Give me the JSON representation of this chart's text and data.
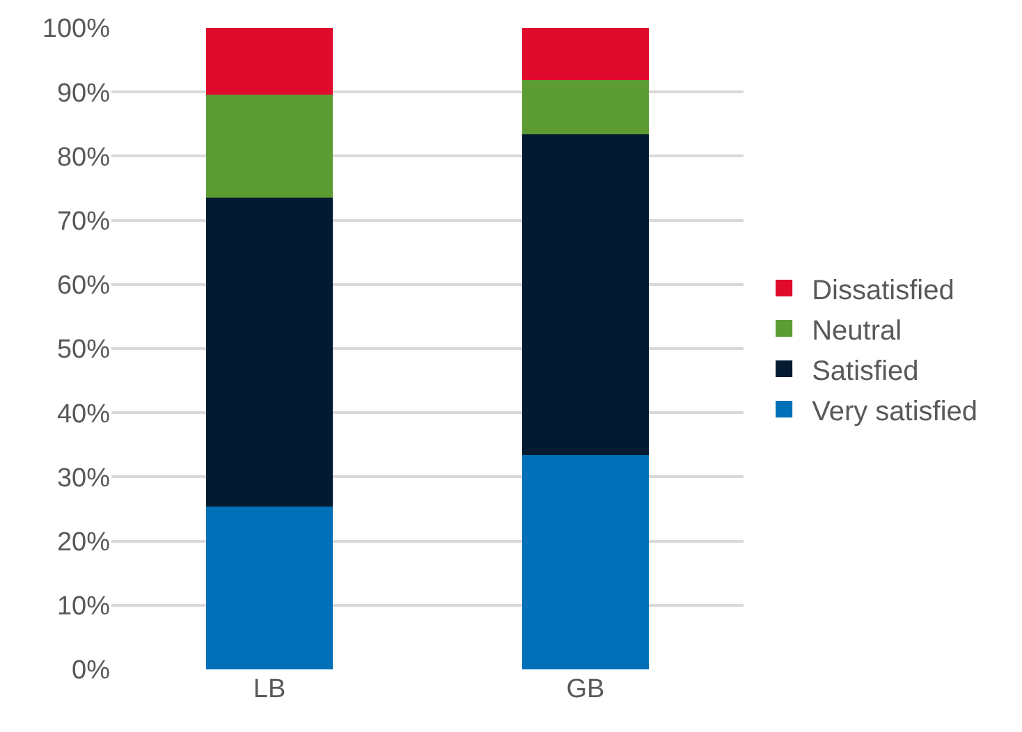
{
  "chart_data": {
    "type": "bar",
    "stacked": true,
    "categories": [
      "LB",
      "GB"
    ],
    "series": [
      {
        "name": "Very satisfied",
        "color": "#0070b8",
        "values": [
          25.4,
          33.4
        ]
      },
      {
        "name": "Satisfied",
        "color": "#031a31",
        "values": [
          48.1,
          50.0
        ]
      },
      {
        "name": "Neutral",
        "color": "#5c9c33",
        "values": [
          16.1,
          8.5
        ]
      },
      {
        "name": "Dissatisfied",
        "color": "#e00b2c",
        "values": [
          10.4,
          8.1
        ]
      }
    ],
    "ylim": [
      0,
      100
    ],
    "yticks": [
      {
        "value": 0,
        "label": "0%"
      },
      {
        "value": 10,
        "label": "10%"
      },
      {
        "value": 20,
        "label": "20%"
      },
      {
        "value": 30,
        "label": "30%"
      },
      {
        "value": 40,
        "label": "40%"
      },
      {
        "value": 50,
        "label": "50%"
      },
      {
        "value": 60,
        "label": "60%"
      },
      {
        "value": 70,
        "label": "70%"
      },
      {
        "value": 80,
        "label": "80%"
      },
      {
        "value": 90,
        "label": "90%"
      },
      {
        "value": 100,
        "label": "100%"
      }
    ],
    "grid": "y",
    "legend": "right"
  }
}
